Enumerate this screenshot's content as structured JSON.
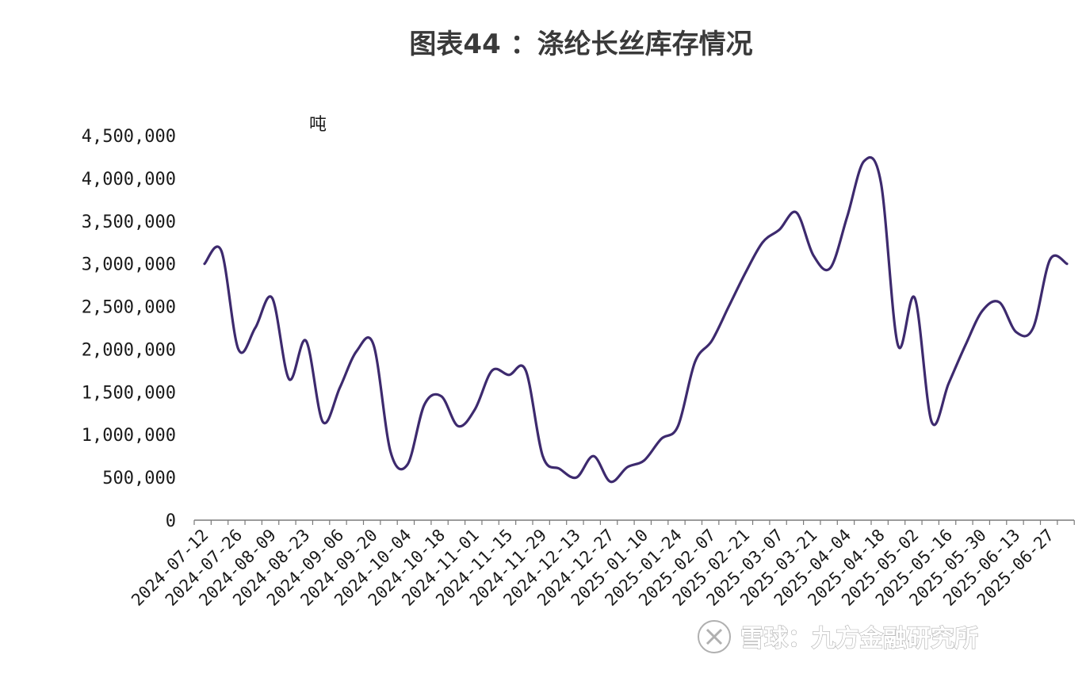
{
  "chart_data": {
    "type": "line",
    "title": "图表44 ：涤纶长丝库存情况",
    "ylabel": "吨",
    "xlabel": "",
    "ylim": [
      0,
      4500000
    ],
    "yticks": [
      "0",
      "500,000",
      "1,000,000",
      "1,500,000",
      "2,000,000",
      "2,500,000",
      "3,000,000",
      "3,500,000",
      "4,000,000",
      "4,500,000"
    ],
    "xtick_labels": [
      "2024-07-12",
      "2024-07-26",
      "2024-08-09",
      "2024-08-23",
      "2024-09-06",
      "2024-09-20",
      "2024-10-04",
      "2024-10-18",
      "2024-11-01",
      "2024-11-15",
      "2024-11-29",
      "2024-12-13",
      "2024-12-27",
      "2025-01-10",
      "2025-01-24",
      "2025-02-07",
      "2025-02-21",
      "2025-03-07",
      "2025-03-21",
      "2025-04-04",
      "2025-04-18",
      "2025-05-02",
      "2025-05-16",
      "2025-05-30",
      "2025-06-13",
      "2025-06-27"
    ],
    "grid": false,
    "line_color": "#3d2a6e",
    "series": [
      {
        "x": [
          "2024-07-12",
          "2024-07-19",
          "2024-07-26",
          "2024-08-02",
          "2024-08-09",
          "2024-08-16",
          "2024-08-23",
          "2024-08-30",
          "2024-09-06",
          "2024-09-13",
          "2024-09-20",
          "2024-09-27",
          "2024-10-04",
          "2024-10-11",
          "2024-10-18",
          "2024-10-25",
          "2024-11-01",
          "2024-11-08",
          "2024-11-15",
          "2024-11-22",
          "2024-11-29",
          "2024-12-06",
          "2024-12-13",
          "2024-12-20",
          "2024-12-27",
          "2025-01-03",
          "2025-01-10",
          "2025-01-17",
          "2025-01-24",
          "2025-01-31",
          "2025-02-07",
          "2025-02-14",
          "2025-02-21",
          "2025-02-28",
          "2025-03-07",
          "2025-03-14",
          "2025-03-21",
          "2025-03-28",
          "2025-04-04",
          "2025-04-11",
          "2025-04-18",
          "2025-04-25",
          "2025-05-02",
          "2025-05-09",
          "2025-05-16",
          "2025-05-23",
          "2025-05-30",
          "2025-06-06",
          "2025-06-13",
          "2025-06-20",
          "2025-06-27",
          "2025-07-04"
        ],
        "values": [
          3000000,
          3150000,
          2000000,
          2250000,
          2600000,
          1650000,
          2100000,
          1150000,
          1550000,
          1980000,
          2050000,
          800000,
          650000,
          1350000,
          1450000,
          1100000,
          1300000,
          1750000,
          1700000,
          1750000,
          750000,
          600000,
          500000,
          750000,
          450000,
          620000,
          700000,
          950000,
          1100000,
          1850000,
          2100000,
          2500000,
          2900000,
          3250000,
          3400000,
          3600000,
          3100000,
          2950000,
          3550000,
          4200000,
          3950000,
          2050000,
          2600000,
          1150000,
          1600000,
          2050000,
          2450000,
          2550000,
          2200000,
          2250000,
          3050000,
          3000000
        ]
      }
    ]
  },
  "watermark": {
    "text": "雪球：九方金融研究所",
    "icon": "xueqiu-logo-icon"
  }
}
